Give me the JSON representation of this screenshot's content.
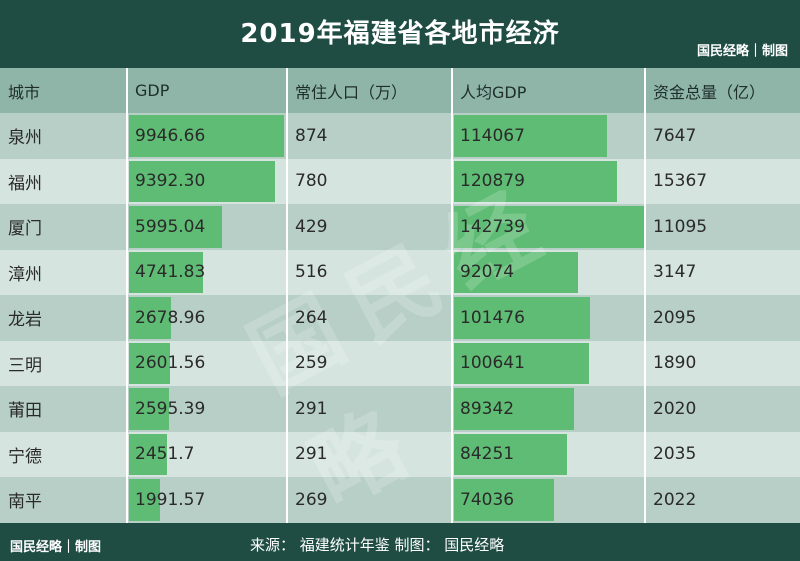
{
  "title": "2019年福建省各地市经济",
  "brand": "国民经略｜制图",
  "footer": {
    "brand": "国民经略｜制图",
    "source": "来源：  福建统计年鉴  制图：  国民经略"
  },
  "watermark": "国民经略",
  "colors": {
    "background": "#1f4d44",
    "header": "#8fb5a9",
    "row_odd": "#b7cfc7",
    "row_even": "#d5e4de",
    "bar": "#5fbc74"
  },
  "chart_data": {
    "type": "table",
    "columns": [
      "城市",
      "GDP",
      "常住人口（万）",
      "人均GDP",
      "资金总量（亿）"
    ],
    "rows": [
      {
        "city": "泉州",
        "gdp": "9946.66",
        "pop": "874",
        "gdp_per_capita": "114067",
        "funds": "7647"
      },
      {
        "city": "福州",
        "gdp": "9392.30",
        "pop": "780",
        "gdp_per_capita": "120879",
        "funds": "15367"
      },
      {
        "city": "厦门",
        "gdp": "5995.04",
        "pop": "429",
        "gdp_per_capita": "142739",
        "funds": "11095"
      },
      {
        "city": "漳州",
        "gdp": "4741.83",
        "pop": "516",
        "gdp_per_capita": "92074",
        "funds": "3147"
      },
      {
        "city": "龙岩",
        "gdp": "2678.96",
        "pop": "264",
        "gdp_per_capita": "101476",
        "funds": "2095"
      },
      {
        "city": "三明",
        "gdp": "2601.56",
        "pop": "259",
        "gdp_per_capita": "100641",
        "funds": "1890"
      },
      {
        "city": "莆田",
        "gdp": "2595.39",
        "pop": "291",
        "gdp_per_capita": "89342",
        "funds": "2020"
      },
      {
        "city": "宁德",
        "gdp": "2451.7",
        "pop": "291",
        "gdp_per_capita": "84251",
        "funds": "2035"
      },
      {
        "city": "南平",
        "gdp": "1991.57",
        "pop": "269",
        "gdp_per_capita": "74036",
        "funds": "2022"
      }
    ]
  }
}
